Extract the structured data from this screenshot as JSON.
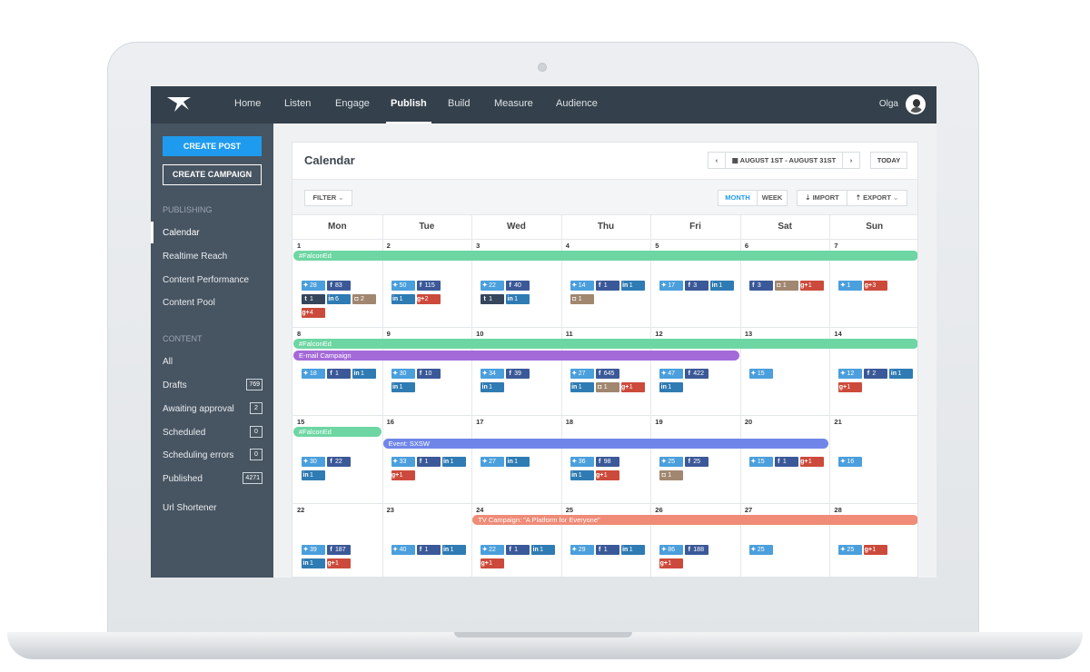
{
  "nav": {
    "items": [
      "Home",
      "Listen",
      "Engage",
      "Publish",
      "Build",
      "Measure",
      "Audience"
    ],
    "active": "Publish",
    "user": "Olga"
  },
  "sidebar": {
    "create_post": "CREATE POST",
    "create_campaign": "CREATE CAMPAIGN",
    "publishing_label": "PUBLISHING",
    "publishing_items": [
      "Calendar",
      "Realtime Reach",
      "Content Performance",
      "Content Pool"
    ],
    "content_label": "CONTENT",
    "content_items": [
      {
        "label": "All",
        "count": ""
      },
      {
        "label": "Drafts",
        "count": "769"
      },
      {
        "label": "Awaiting approval",
        "count": "2"
      },
      {
        "label": "Scheduled",
        "count": "0"
      },
      {
        "label": "Scheduling errors",
        "count": "0"
      },
      {
        "label": "Published",
        "count": "4271"
      }
    ],
    "url_shortener": "Url Shortener"
  },
  "calendar": {
    "title": "Calendar",
    "date_range": "AUGUST 1ST - AUGUST 31ST",
    "today": "TODAY",
    "prev_icon": "‹",
    "next_icon": "›",
    "filter": "FILTER",
    "month": "MONTH",
    "week": "WEEK",
    "import": "IMPORT",
    "export": "EXPORT",
    "days": [
      "Mon",
      "Tue",
      "Wed",
      "Thu",
      "Fri",
      "Sat",
      "Sun"
    ],
    "weeks": [
      {
        "dates": [
          "1",
          "2",
          "3",
          "4",
          "5",
          "6",
          "7"
        ],
        "bars": [
          {
            "label": "#FalconEd",
            "start": 0,
            "end": 6,
            "color": "#6ed6a3"
          }
        ],
        "posts": [
          [
            [
              [
                "tw",
                "28"
              ],
              [
                "fb",
                "83"
              ]
            ],
            [
              [
                "tu",
                "1"
              ],
              [
                "li",
                "6"
              ],
              [
                "ig",
                "2"
              ]
            ],
            [
              [
                "gp",
                "4"
              ]
            ]
          ],
          [
            [
              [
                "tw",
                "50"
              ],
              [
                "fb",
                "115"
              ]
            ],
            [
              [
                "li",
                "1"
              ],
              [
                "gp",
                "2"
              ]
            ]
          ],
          [
            [
              [
                "tw",
                "22"
              ],
              [
                "fb",
                "40"
              ]
            ],
            [
              [
                "tu",
                "1"
              ],
              [
                "li",
                "1"
              ]
            ]
          ],
          [
            [
              [
                "tw",
                "14"
              ],
              [
                "fb",
                "1"
              ],
              [
                "li",
                "1"
              ]
            ],
            [
              [
                "ig",
                "1"
              ]
            ]
          ],
          [
            [
              [
                "tw",
                "17"
              ],
              [
                "fb",
                "3"
              ],
              [
                "li",
                "1"
              ]
            ]
          ],
          [
            [
              [
                "fb",
                "3"
              ],
              [
                "ig",
                "1"
              ],
              [
                "gp",
                "1"
              ]
            ]
          ],
          [
            [
              [
                "tw",
                "1"
              ],
              [
                "gp",
                "3"
              ]
            ]
          ]
        ]
      },
      {
        "dates": [
          "8",
          "9",
          "10",
          "11",
          "12",
          "13",
          "14"
        ],
        "bars": [
          {
            "label": "#FalconEd",
            "start": 0,
            "end": 6,
            "color": "#6ed6a3"
          },
          {
            "label": "E-mail Campaign",
            "start": 0,
            "end": 4,
            "color": "#a46ad8"
          }
        ],
        "posts": [
          [
            [
              [
                "tw",
                "18"
              ],
              [
                "fb",
                "1"
              ],
              [
                "li",
                "1"
              ]
            ]
          ],
          [
            [
              [
                "tw",
                "30"
              ],
              [
                "fb",
                "10"
              ]
            ],
            [
              [
                "li",
                "1"
              ]
            ]
          ],
          [
            [
              [
                "tw",
                "34"
              ],
              [
                "fb",
                "39"
              ]
            ],
            [
              [
                "li",
                "1"
              ]
            ]
          ],
          [
            [
              [
                "tw",
                "27"
              ],
              [
                "fb",
                "645"
              ]
            ],
            [
              [
                "li",
                "1"
              ],
              [
                "ig",
                "1"
              ],
              [
                "gp",
                "1"
              ]
            ]
          ],
          [
            [
              [
                "tw",
                "47"
              ],
              [
                "fb",
                "422"
              ]
            ],
            [
              [
                "li",
                "1"
              ]
            ]
          ],
          [
            [
              [
                "tw",
                "15"
              ]
            ]
          ],
          [
            [
              [
                "tw",
                "12"
              ],
              [
                "fb",
                "2"
              ],
              [
                "li",
                "1"
              ]
            ],
            [
              [
                "gp",
                "1"
              ]
            ]
          ]
        ]
      },
      {
        "dates": [
          "15",
          "16",
          "17",
          "18",
          "19",
          "20",
          "21"
        ],
        "bars": [
          {
            "label": "#FalconEd",
            "start": 0,
            "end": 0,
            "color": "#6ed6a3"
          },
          {
            "label": "Event: SXSW",
            "start": 1,
            "end": 5,
            "color": "#6f86e8"
          }
        ],
        "posts": [
          [
            [
              [
                "tw",
                "30"
              ],
              [
                "fb",
                "22"
              ]
            ],
            [
              [
                "li",
                "1"
              ]
            ]
          ],
          [
            [
              [
                "tw",
                "33"
              ],
              [
                "fb",
                "1"
              ],
              [
                "li",
                "1"
              ]
            ],
            [
              [
                "gp",
                "1"
              ]
            ]
          ],
          [
            [
              [
                "tw",
                "27"
              ],
              [
                "li",
                "1"
              ]
            ]
          ],
          [
            [
              [
                "tw",
                "36"
              ],
              [
                "fb",
                "98"
              ]
            ],
            [
              [
                "li",
                "1"
              ],
              [
                "gp",
                "1"
              ]
            ]
          ],
          [
            [
              [
                "tw",
                "25"
              ],
              [
                "fb",
                "25"
              ]
            ],
            [
              [
                "ig",
                "1"
              ]
            ]
          ],
          [
            [
              [
                "tw",
                "15"
              ],
              [
                "fb",
                "1"
              ],
              [
                "gp",
                "1"
              ]
            ]
          ],
          [
            [
              [
                "tw",
                "16"
              ]
            ]
          ]
        ]
      },
      {
        "dates": [
          "22",
          "23",
          "24",
          "25",
          "26",
          "27",
          "28"
        ],
        "bars": [
          {
            "label": "TV Campaign: \"A Platform for Everyone\"",
            "start": 2,
            "end": 6,
            "color": "#ef8b77"
          }
        ],
        "posts": [
          [
            [
              [
                "tw",
                "39"
              ],
              [
                "fb",
                "187"
              ]
            ],
            [
              [
                "li",
                "1"
              ],
              [
                "gp",
                "1"
              ]
            ]
          ],
          [
            [
              [
                "tw",
                "40"
              ],
              [
                "fb",
                "1"
              ],
              [
                "li",
                "1"
              ]
            ]
          ],
          [
            [
              [
                "tw",
                "22"
              ],
              [
                "fb",
                "1"
              ],
              [
                "li",
                "1"
              ]
            ],
            [
              [
                "gp",
                "1"
              ]
            ]
          ],
          [
            [
              [
                "tw",
                "29"
              ],
              [
                "fb",
                "1"
              ],
              [
                "li",
                "1"
              ]
            ]
          ],
          [
            [
              [
                "tw",
                "86"
              ],
              [
                "fb",
                "188"
              ]
            ],
            [
              [
                "gp",
                "1"
              ]
            ]
          ],
          [
            [
              [
                "tw",
                "25"
              ]
            ]
          ],
          [
            [
              [
                "tw",
                "25"
              ],
              [
                "gp",
                "1"
              ]
            ]
          ]
        ]
      }
    ]
  },
  "icons": {
    "tw": "twitter-icon",
    "fb": "facebook-icon",
    "li": "linkedin-icon",
    "tu": "tumblr-icon",
    "gp": "google-plus-icon",
    "ig": "instagram-icon"
  },
  "icon_glyphs": {
    "tw": "✦",
    "fb": "f",
    "li": "in",
    "tu": "t",
    "gp": "g+",
    "ig": "◘"
  },
  "colors": {
    "nav_bg": "#34404b",
    "sidebar_bg": "#475461",
    "accent": "#1e9bef"
  }
}
